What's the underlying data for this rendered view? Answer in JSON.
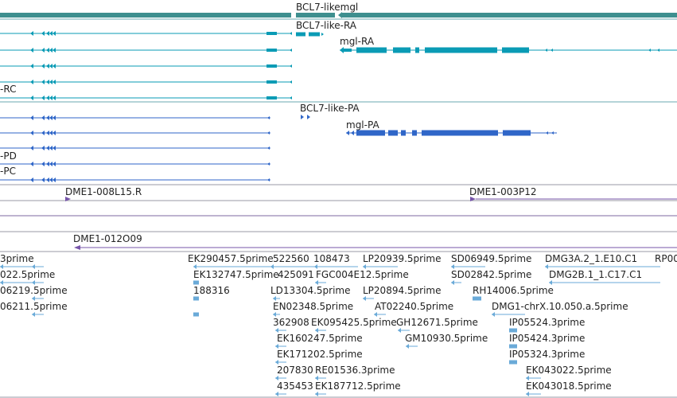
{
  "gene_track": {
    "gene_labels": {
      "top": "BCL7-likemgl",
      "bcl7_ra": "BCL7-like-RA",
      "mgl_ra": "mgl-RA",
      "rc": "-RC",
      "bcl7_pa": "BCL7-like-PA",
      "mgl_pa": "mgl-PA",
      "pd": "-PD",
      "pc": "-PC"
    },
    "colors": {
      "gene_bar": "#3e8f8f",
      "transcript_rna": "#0a9bb5",
      "transcript_protein": "#2f66c8"
    }
  },
  "clone_track": {
    "labels": {
      "clone1": "DME1-008L15.R",
      "clone2": "DME1-003P12",
      "clone3": "DME1-012O09"
    },
    "colors": {
      "clone": "#7755aa"
    }
  },
  "est_track": {
    "color": "#6aaad8",
    "labels": [
      "3prime",
      "022.5prime",
      "06219.5prime",
      "06211.5prime",
      "EK290457.5prime",
      "EK132747.5prime",
      "188316",
      "522560",
      "108473",
      "425091",
      "FGC004E12.5prime",
      "LD13304.5prime",
      "EN02348.5prime",
      "362908",
      "EK095425.5prime",
      "EK160247.5prime",
      "EK171202.5prime",
      "207830",
      "RE01536.3prime",
      "435453",
      "EK187712.5prime",
      "LP20939.5prime",
      "LP20894.5prime",
      "AT02240.5prime",
      "GH12671.5prime",
      "GM10930.5prime",
      "SD06949.5prime",
      "SD02842.5prime",
      "RH14006.5prime",
      "DMG3A.2_1.E10.C1",
      "DMG2B.1_1.C17.C1",
      "DMG1-chrX.10.050.a.5prime",
      "IP05524.3prime",
      "IP05424.3prime",
      "IP05324.3prime",
      "EK043022.5prime",
      "EK043018.5prime",
      "RP00"
    ]
  }
}
